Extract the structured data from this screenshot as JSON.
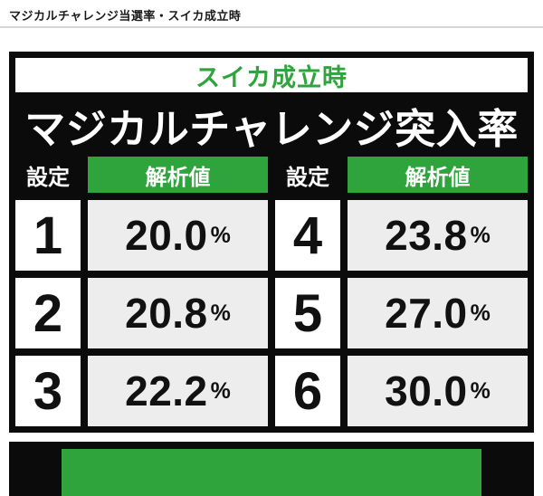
{
  "page": {
    "title": "マジカルチャレンジ当選率・スイカ成立時"
  },
  "table": {
    "section_label": "スイカ成立時",
    "title": "マジカルチャレンジ突入率",
    "header": {
      "setting": "設定",
      "value": "解析値"
    },
    "percent": "%",
    "rows": [
      {
        "left": {
          "setting": "1",
          "value": "20.0"
        },
        "right": {
          "setting": "4",
          "value": "23.8"
        }
      },
      {
        "left": {
          "setting": "2",
          "value": "20.8"
        },
        "right": {
          "setting": "5",
          "value": "27.0"
        }
      },
      {
        "left": {
          "setting": "3",
          "value": "22.2"
        },
        "right": {
          "setting": "6",
          "value": "30.0"
        }
      }
    ]
  },
  "colors": {
    "accent_green": "#2fa33c",
    "frame_black": "#0b0b0b",
    "value_cell_bg": "#ededed",
    "divider_gray": "#d6d6d6"
  }
}
